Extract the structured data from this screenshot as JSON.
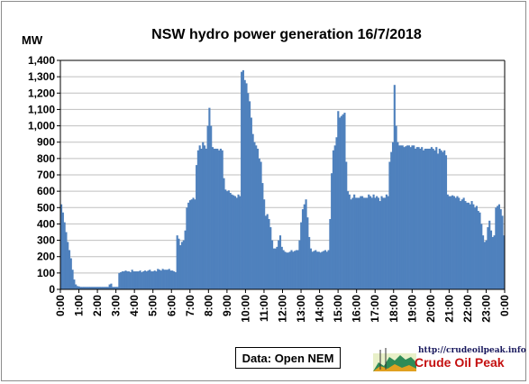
{
  "chart_data": {
    "type": "bar",
    "title": "NSW hydro power generation 16/7/2018",
    "ylabel": "MW",
    "xlabel": "",
    "ylim": [
      0,
      1400
    ],
    "yticks": [
      0,
      100,
      200,
      300,
      400,
      500,
      600,
      700,
      800,
      900,
      1000,
      1100,
      1200,
      1300,
      1400
    ],
    "ytick_labels": [
      "0",
      "100",
      "200",
      "300",
      "400",
      "500",
      "600",
      "700",
      "800",
      "900",
      "1,000",
      "1,100",
      "1,200",
      "1,300",
      "1,400"
    ],
    "xtick_labels": [
      "0:00",
      "1:00",
      "2:00",
      "3:00",
      "4:00",
      "5:00",
      "6:00",
      "7:00",
      "8:00",
      "9:00",
      "10:00",
      "11:00",
      "12:00",
      "13:00",
      "14:00",
      "15:00",
      "16:00",
      "17:00",
      "18:00",
      "19:00",
      "20:00",
      "21:00",
      "22:00",
      "23:00",
      "0:00"
    ],
    "grid": true,
    "bar_color": "#4f81bd",
    "interval_minutes": 5,
    "values": [
      520,
      470,
      410,
      350,
      290,
      240,
      190,
      120,
      60,
      30,
      20,
      18,
      15,
      15,
      15,
      15,
      15,
      15,
      15,
      15,
      15,
      15,
      15,
      15,
      15,
      15,
      15,
      15,
      15,
      15,
      30,
      35,
      15,
      15,
      15,
      15,
      100,
      105,
      110,
      110,
      115,
      110,
      110,
      105,
      120,
      110,
      110,
      110,
      110,
      115,
      105,
      110,
      115,
      110,
      115,
      120,
      110,
      110,
      115,
      110,
      125,
      120,
      115,
      125,
      120,
      120,
      120,
      125,
      115,
      115,
      110,
      105,
      330,
      310,
      270,
      290,
      300,
      360,
      500,
      530,
      545,
      550,
      560,
      550,
      760,
      850,
      880,
      860,
      900,
      880,
      860,
      1000,
      1110,
      1000,
      870,
      860,
      860,
      860,
      850,
      860,
      850,
      680,
      610,
      600,
      605,
      590,
      580,
      575,
      570,
      560,
      580,
      570,
      1330,
      1340,
      1280,
      1260,
      1200,
      1150,
      1050,
      950,
      900,
      880,
      860,
      800,
      780,
      650,
      550,
      450,
      460,
      430,
      380,
      300,
      250,
      250,
      260,
      300,
      330,
      260,
      240,
      230,
      225,
      225,
      230,
      240,
      230,
      235,
      240,
      240,
      300,
      410,
      490,
      520,
      550,
      440,
      320,
      250,
      230,
      235,
      240,
      230,
      230,
      225,
      230,
      235,
      240,
      230,
      240,
      430,
      710,
      850,
      880,
      930,
      1090,
      1050,
      1060,
      1070,
      1080,
      780,
      600,
      580,
      550,
      560,
      580,
      560,
      560,
      560,
      570,
      570,
      560,
      560,
      560,
      580,
      570,
      560,
      580,
      560,
      570,
      560,
      540,
      570,
      560,
      560,
      580,
      570,
      780,
      840,
      900,
      1250,
      1000,
      900,
      880,
      880,
      880,
      870,
      875,
      880,
      880,
      870,
      880,
      880,
      860,
      870,
      870,
      860,
      870,
      850,
      860,
      860,
      860,
      860,
      870,
      860,
      850,
      870,
      830,
      860,
      850,
      840,
      850,
      820,
      580,
      570,
      570,
      575,
      570,
      560,
      570,
      560,
      540,
      550,
      560,
      540,
      530,
      530,
      520,
      540,
      520,
      500,
      510,
      480,
      470,
      400,
      330,
      290,
      300,
      380,
      420,
      360,
      320,
      330,
      500,
      510,
      520,
      490,
      450,
      330
    ]
  },
  "source_note": "Data: Open NEM",
  "logo": {
    "url_text": "http://crudeoilpeak.info",
    "name": "Crude Oil Peak"
  }
}
